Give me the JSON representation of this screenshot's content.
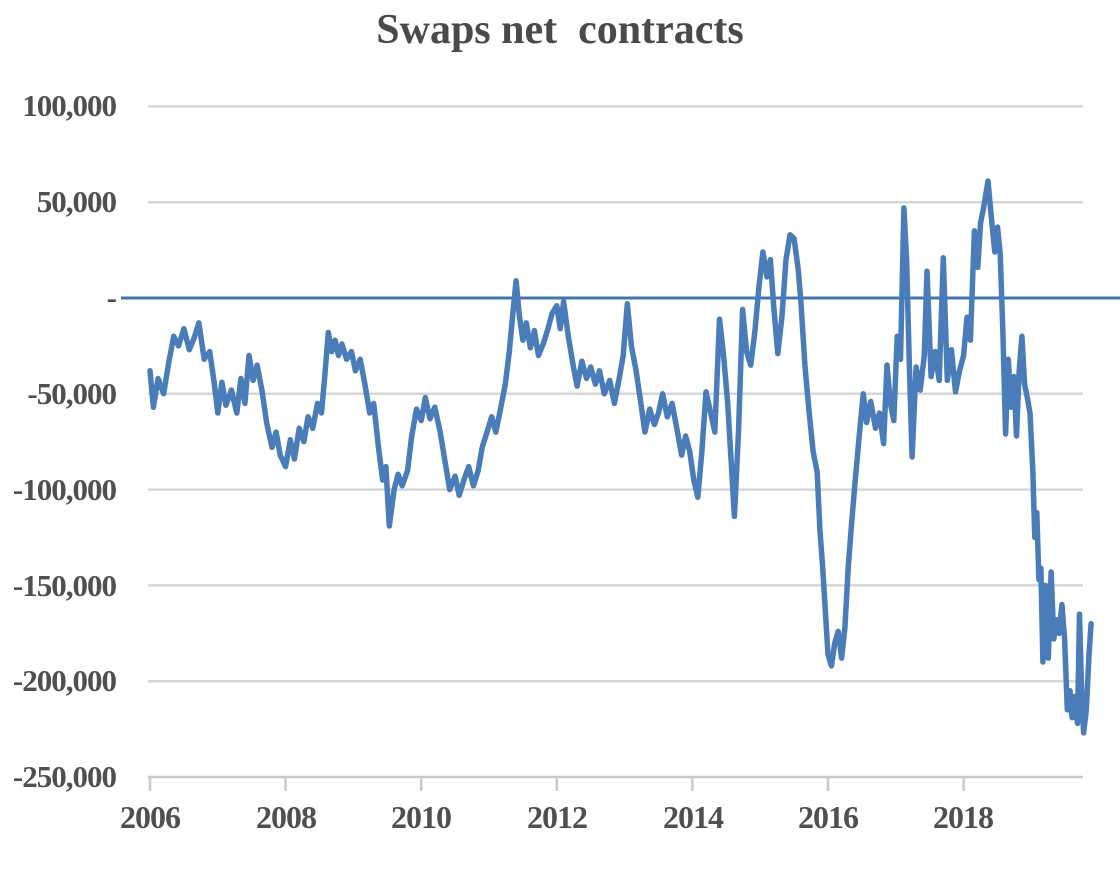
{
  "title": "Swaps net  contracts",
  "colors": {
    "series_line": "#4a7cba",
    "zero_line": "#4274b4",
    "gridline": "#d6d6d6",
    "axis_line": "#c9c9c9",
    "label_text": "#4f4f4f",
    "title_text": "#4a4a4a",
    "background": "#ffffff"
  },
  "y_axis": {
    "tick_labels": [
      "100,000",
      "50,000",
      "-",
      "-50,000",
      "-100,000",
      "-150,000",
      "-200,000",
      "-250,000"
    ],
    "tick_values": [
      100000,
      50000,
      0,
      -50000,
      -100000,
      -150000,
      -200000,
      -250000
    ]
  },
  "x_axis": {
    "tick_labels": [
      "2006",
      "2008",
      "2010",
      "2012",
      "2014",
      "2016",
      "2018"
    ],
    "tick_values": [
      2006,
      2008,
      2010,
      2012,
      2014,
      2016,
      2018
    ]
  },
  "chart_data": {
    "type": "line",
    "title": "Swaps net  contracts",
    "xlabel": "",
    "ylabel": "",
    "x_range": [
      2006.0,
      2019.9
    ],
    "ylim": [
      -250000,
      100000
    ],
    "grid": "horizontal",
    "legend": "none",
    "zero_reference_line": 0,
    "series": [
      {
        "name": "Swaps net contracts",
        "x": [
          2006.0,
          2006.05,
          2006.12,
          2006.2,
          2006.28,
          2006.35,
          2006.42,
          2006.5,
          2006.58,
          2006.65,
          2006.72,
          2006.8,
          2006.88,
          2006.95,
          2007.0,
          2007.06,
          2007.12,
          2007.2,
          2007.28,
          2007.34,
          2007.4,
          2007.46,
          2007.52,
          2007.58,
          2007.65,
          2007.72,
          2007.8,
          2007.86,
          2007.92,
          2008.0,
          2008.07,
          2008.13,
          2008.2,
          2008.27,
          2008.33,
          2008.4,
          2008.47,
          2008.53,
          2008.58,
          2008.63,
          2008.68,
          2008.73,
          2008.78,
          2008.83,
          2008.9,
          2008.97,
          2009.03,
          2009.1,
          2009.17,
          2009.24,
          2009.3,
          2009.37,
          2009.43,
          2009.48,
          2009.53,
          2009.6,
          2009.66,
          2009.72,
          2009.8,
          2009.86,
          2009.93,
          2010.0,
          2010.06,
          2010.13,
          2010.2,
          2010.28,
          2010.35,
          2010.42,
          2010.5,
          2010.56,
          2010.63,
          2010.7,
          2010.77,
          2010.84,
          2010.9,
          2010.97,
          2011.04,
          2011.1,
          2011.17,
          2011.24,
          2011.3,
          2011.36,
          2011.4,
          2011.45,
          2011.5,
          2011.55,
          2011.61,
          2011.67,
          2011.73,
          2011.8,
          2011.87,
          2011.93,
          2012.0,
          2012.05,
          2012.1,
          2012.17,
          2012.24,
          2012.3,
          2012.37,
          2012.44,
          2012.5,
          2012.57,
          2012.63,
          2012.7,
          2012.78,
          2012.85,
          2012.92,
          2012.98,
          2013.04,
          2013.1,
          2013.17,
          2013.24,
          2013.3,
          2013.37,
          2013.44,
          2013.5,
          2013.56,
          2013.63,
          2013.7,
          2013.78,
          2013.84,
          2013.9,
          2013.96,
          2014.02,
          2014.08,
          2014.14,
          2014.2,
          2014.27,
          2014.33,
          2014.4,
          2014.46,
          2014.52,
          2014.58,
          2014.62,
          2014.68,
          2014.74,
          2014.8,
          2014.86,
          2014.92,
          2014.98,
          2015.04,
          2015.1,
          2015.15,
          2015.2,
          2015.26,
          2015.32,
          2015.38,
          2015.44,
          2015.5,
          2015.56,
          2015.6,
          2015.66,
          2015.72,
          2015.78,
          2015.84,
          2015.88,
          2015.92,
          2015.96,
          2016.0,
          2016.05,
          2016.1,
          2016.15,
          2016.2,
          2016.25,
          2016.3,
          2016.35,
          2016.4,
          2016.46,
          2016.52,
          2016.57,
          2016.63,
          2016.7,
          2016.76,
          2016.82,
          2016.87,
          2016.92,
          2016.97,
          2017.02,
          2017.07,
          2017.12,
          2017.16,
          2017.2,
          2017.24,
          2017.3,
          2017.36,
          2017.42,
          2017.46,
          2017.52,
          2017.58,
          2017.64,
          2017.7,
          2017.76,
          2017.82,
          2017.88,
          2017.94,
          2018.0,
          2018.05,
          2018.1,
          2018.16,
          2018.21,
          2018.25,
          2018.3,
          2018.36,
          2018.42,
          2018.46,
          2018.5,
          2018.54,
          2018.58,
          2018.62,
          2018.66,
          2018.7,
          2018.74,
          2018.78,
          2018.82,
          2018.86,
          2018.9,
          2018.94,
          2018.98,
          2019.02,
          2019.05,
          2019.08,
          2019.11,
          2019.14,
          2019.17,
          2019.21,
          2019.25,
          2019.29,
          2019.33,
          2019.37,
          2019.41,
          2019.45,
          2019.49,
          2019.53,
          2019.57,
          2019.6,
          2019.64,
          2019.68,
          2019.71,
          2019.74,
          2019.77,
          2019.81,
          2019.85,
          2019.88
        ],
        "y": [
          -38000,
          -57000,
          -42000,
          -50000,
          -33000,
          -20000,
          -25000,
          -16000,
          -27000,
          -21000,
          -13000,
          -32000,
          -28000,
          -45000,
          -60000,
          -44000,
          -56000,
          -48000,
          -60000,
          -42000,
          -55000,
          -30000,
          -43000,
          -35000,
          -48000,
          -65000,
          -78000,
          -70000,
          -82000,
          -88000,
          -74000,
          -84000,
          -68000,
          -75000,
          -62000,
          -68000,
          -55000,
          -60000,
          -40000,
          -18000,
          -28000,
          -22000,
          -30000,
          -24000,
          -32000,
          -28000,
          -38000,
          -32000,
          -45000,
          -60000,
          -55000,
          -78000,
          -95000,
          -88000,
          -119000,
          -100000,
          -92000,
          -98000,
          -90000,
          -72000,
          -58000,
          -64000,
          -52000,
          -63000,
          -57000,
          -70000,
          -85000,
          -100000,
          -93000,
          -103000,
          -95000,
          -88000,
          -98000,
          -90000,
          -78000,
          -70000,
          -62000,
          -70000,
          -58000,
          -45000,
          -28000,
          -5000,
          9000,
          -10000,
          -22000,
          -13000,
          -26000,
          -17000,
          -30000,
          -24000,
          -16000,
          -8000,
          -4000,
          -16000,
          -2000,
          -20000,
          -35000,
          -46000,
          -33000,
          -42000,
          -36000,
          -45000,
          -38000,
          -50000,
          -43000,
          -55000,
          -42000,
          -30000,
          -3000,
          -25000,
          -38000,
          -55000,
          -70000,
          -58000,
          -66000,
          -60000,
          -50000,
          -62000,
          -55000,
          -70000,
          -82000,
          -72000,
          -80000,
          -95000,
          -104000,
          -80000,
          -49000,
          -60000,
          -70000,
          -11000,
          -30000,
          -55000,
          -90000,
          -114000,
          -70000,
          -6000,
          -28000,
          -35000,
          -18000,
          5000,
          24000,
          11000,
          20000,
          -5000,
          -29000,
          -10000,
          20000,
          33000,
          31000,
          15000,
          -2000,
          -35000,
          -59000,
          -80000,
          -91000,
          -121000,
          -140000,
          -163000,
          -186000,
          -192000,
          -180000,
          -174000,
          -188000,
          -172000,
          -140000,
          -117000,
          -96000,
          -72000,
          -50000,
          -65000,
          -54000,
          -68000,
          -60000,
          -76000,
          -35000,
          -55000,
          -64000,
          -20000,
          -32000,
          47000,
          20000,
          -36000,
          -83000,
          -36000,
          -48000,
          -30000,
          14000,
          -41000,
          -28000,
          -43000,
          21000,
          -43000,
          -27000,
          -49000,
          -38000,
          -30000,
          -10000,
          -22000,
          35000,
          16000,
          39000,
          48000,
          61000,
          38000,
          24000,
          37000,
          23000,
          -18000,
          -71000,
          -32000,
          -57000,
          -41000,
          -72000,
          -38000,
          -20000,
          -45000,
          -52000,
          -60000,
          -90000,
          -125000,
          -112000,
          -147000,
          -141000,
          -190000,
          -150000,
          -188000,
          -143000,
          -178000,
          -168000,
          -175000,
          -160000,
          -178000,
          -215000,
          -205000,
          -219000,
          -208000,
          -222000,
          -165000,
          -205000,
          -227000,
          -215000,
          -186000,
          -170000
        ]
      }
    ]
  }
}
